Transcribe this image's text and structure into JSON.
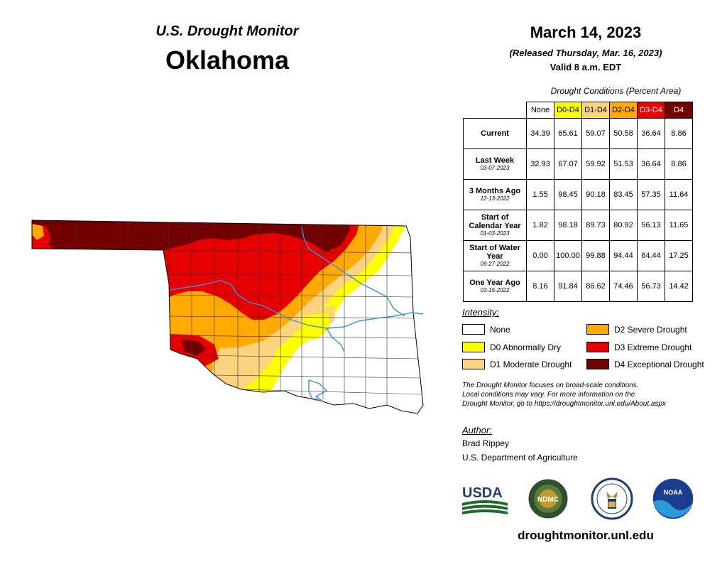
{
  "header": {
    "subtitle": "U.S. Drought Monitor",
    "state": "Oklahoma",
    "date": "March 14, 2023",
    "released": "(Released Thursday, Mar. 16, 2023)",
    "valid": "Valid 8 a.m. EDT"
  },
  "table": {
    "caption": "Drought Conditions (Percent Area)",
    "columns": [
      {
        "label": "None",
        "color": "#ffffff",
        "text_color": "#000000"
      },
      {
        "label": "D0-D4",
        "color": "#ffff00",
        "text_color": "#000000"
      },
      {
        "label": "D1-D4",
        "color": "#fcd37f",
        "text_color": "#000000"
      },
      {
        "label": "D2-D4",
        "color": "#ffaa00",
        "text_color": "#000000"
      },
      {
        "label": "D3-D4",
        "color": "#e60000",
        "text_color": "#ffffff"
      },
      {
        "label": "D4",
        "color": "#730000",
        "text_color": "#ffffff"
      }
    ],
    "rows": [
      {
        "label": "Current",
        "date": "",
        "values": [
          "34.39",
          "65.61",
          "59.07",
          "50.58",
          "36.64",
          "8.86"
        ]
      },
      {
        "label": "Last Week",
        "date": "03-07-2023",
        "values": [
          "32.93",
          "67.07",
          "59.92",
          "51.53",
          "36.64",
          "8.86"
        ]
      },
      {
        "label": "3 Months Ago",
        "date": "12-13-2022",
        "values": [
          "1.55",
          "98.45",
          "90.18",
          "83.45",
          "57.35",
          "11.64"
        ]
      },
      {
        "label": "Start of Calendar Year",
        "date": "01-03-2023",
        "values": [
          "1.82",
          "98.18",
          "89.73",
          "80.92",
          "56.13",
          "11.65"
        ]
      },
      {
        "label": "Start of Water Year",
        "date": "09-27-2022",
        "values": [
          "0.00",
          "100.00",
          "99.88",
          "94.44",
          "64.44",
          "17.25"
        ]
      },
      {
        "label": "One Year Ago",
        "date": "03-15-2022",
        "values": [
          "8.16",
          "91.84",
          "86.62",
          "74.46",
          "56.73",
          "14.42"
        ]
      }
    ]
  },
  "legend": {
    "title": "Intensity:",
    "items": [
      {
        "label": "None",
        "color": "#ffffff"
      },
      {
        "label": "D0 Abnormally Dry",
        "color": "#ffff00"
      },
      {
        "label": "D1 Moderate Drought",
        "color": "#fcd37f"
      },
      {
        "label": "D2 Severe Drought",
        "color": "#ffaa00"
      },
      {
        "label": "D3 Extreme Drought",
        "color": "#e60000"
      },
      {
        "label": "D4 Exceptional Drought",
        "color": "#730000"
      }
    ]
  },
  "note": {
    "line1": "The Drought Monitor focuses on broad-scale conditions.",
    "line2": "Local conditions may vary. For more information on the",
    "line3": "Drought Monitor, go to https://droughtmonitor.unl.edu/About.aspx"
  },
  "author": {
    "title": "Author:",
    "name": "Brad Rippey",
    "org": "U.S. Department of Agriculture"
  },
  "logos": {
    "usda": "USDA",
    "ndmc": "NDMC",
    "noaa": "NOAA"
  },
  "url": "droughtmonitor.unl.edu",
  "map": {
    "colors": {
      "none": "#ffffff",
      "d0": "#ffff00",
      "d1": "#fcd37f",
      "d2": "#ffaa00",
      "d3": "#e60000",
      "d4": "#730000",
      "water": "#3d8fd9",
      "county": "#333333"
    }
  }
}
